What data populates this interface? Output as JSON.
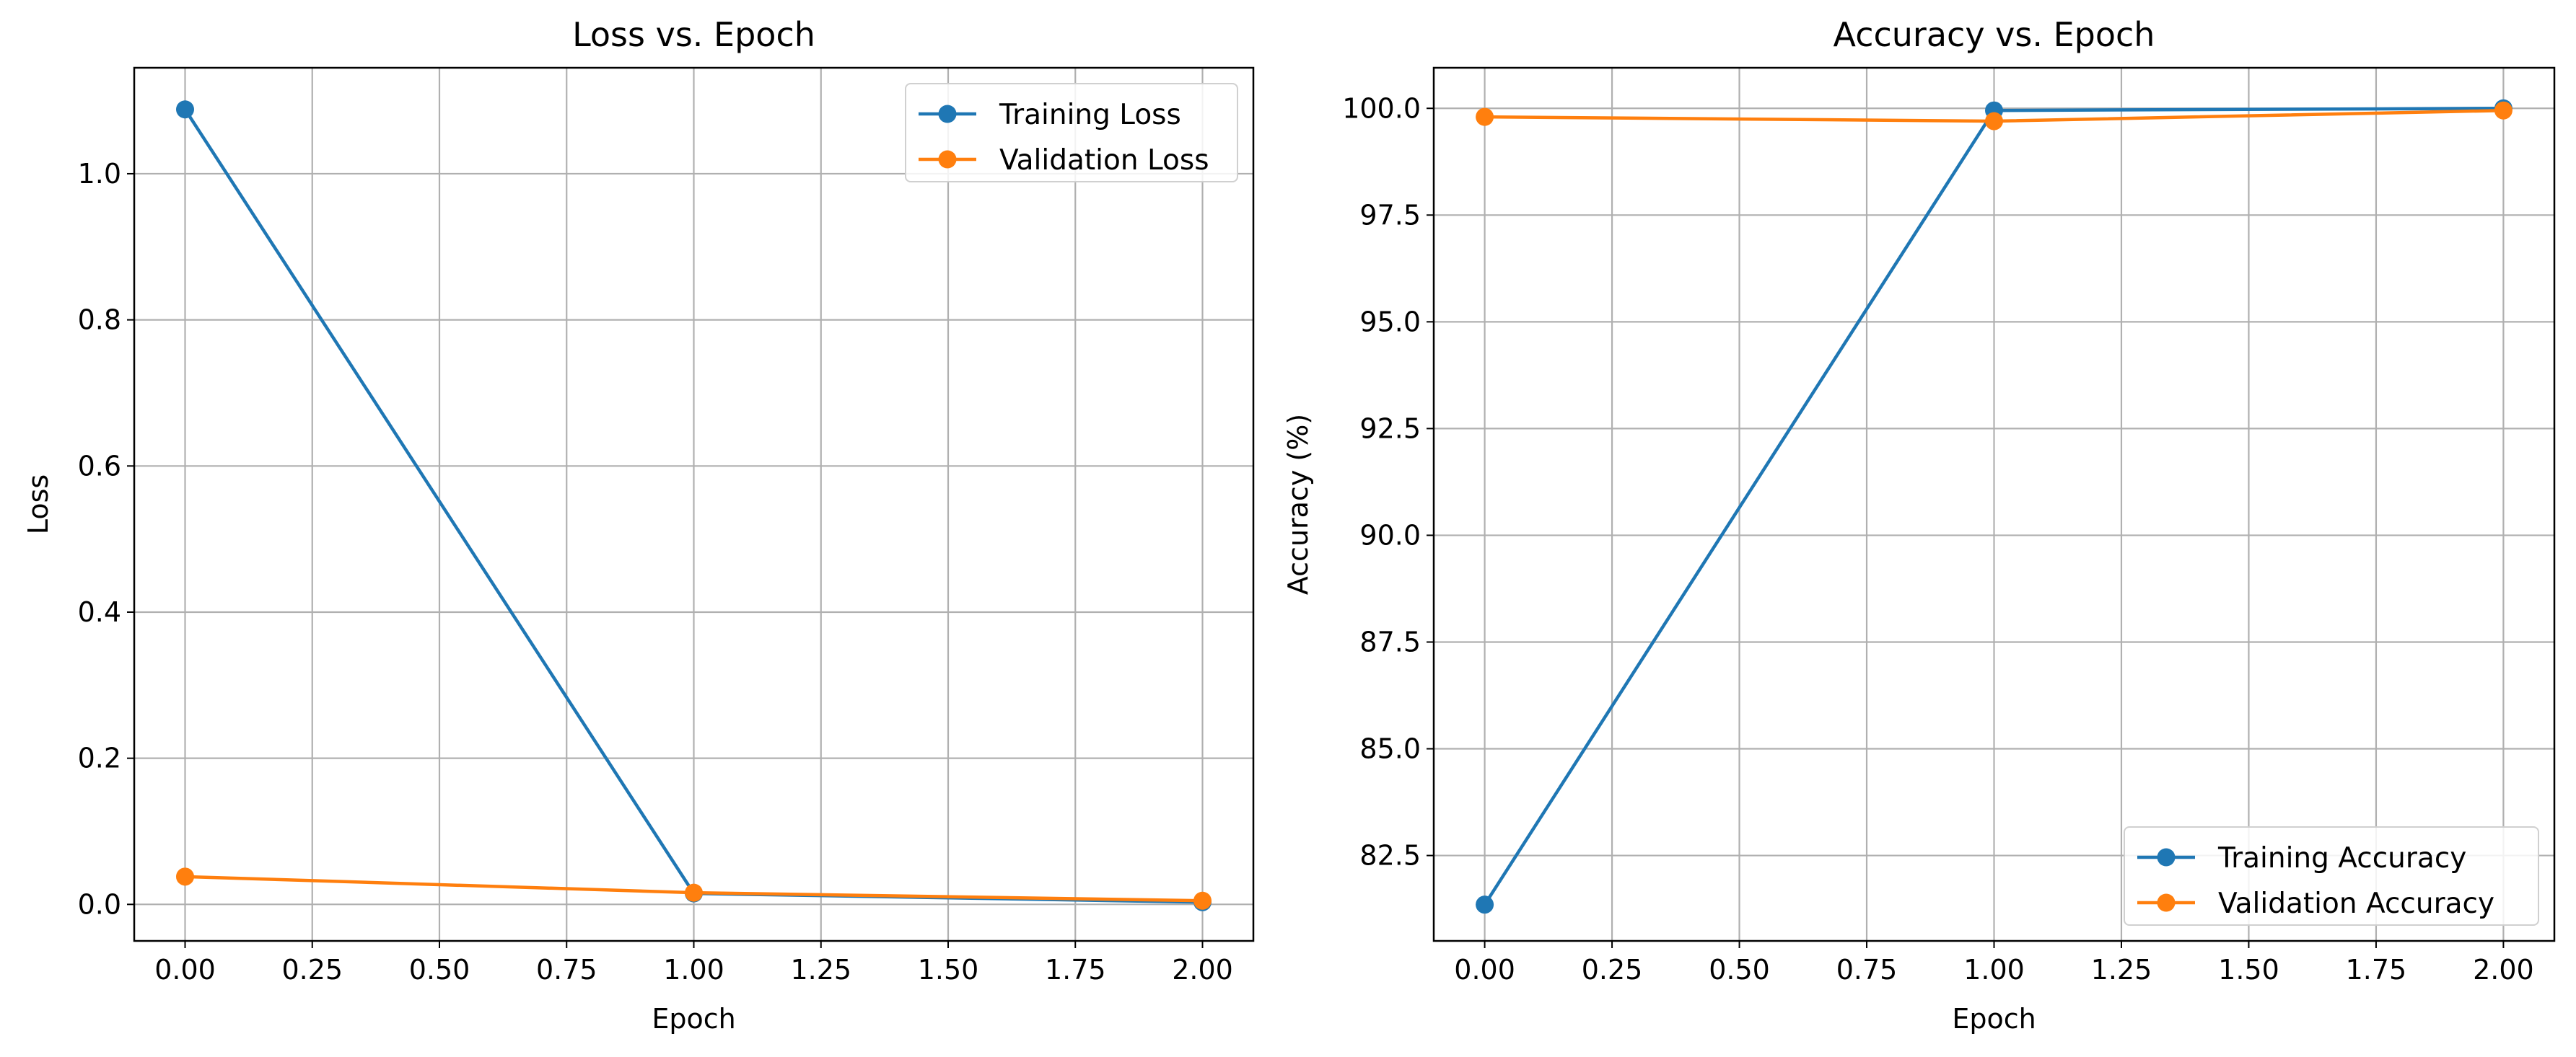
{
  "chart_data": [
    {
      "type": "line",
      "title": "Loss vs. Epoch",
      "xlabel": "Epoch",
      "ylabel": "Loss",
      "x": [
        0,
        1,
        2
      ],
      "xlim": [
        -0.1,
        2.1
      ],
      "ylim": [
        -0.05,
        1.145
      ],
      "xticks": [
        "0.00",
        "0.25",
        "0.50",
        "0.75",
        "1.00",
        "1.25",
        "1.50",
        "1.75",
        "2.00"
      ],
      "yticks": [
        "0.0",
        "0.2",
        "0.4",
        "0.6",
        "0.8",
        "1.0"
      ],
      "grid": true,
      "legend_position": "upper right",
      "series": [
        {
          "name": "Training Loss",
          "color": "#1f77b4",
          "marker": "circle",
          "values": [
            1.088,
            0.015,
            0.003
          ]
        },
        {
          "name": "Validation Loss",
          "color": "#ff7f0e",
          "marker": "circle",
          "values": [
            0.038,
            0.016,
            0.005
          ]
        }
      ]
    },
    {
      "type": "line",
      "title": "Accuracy vs. Epoch",
      "xlabel": "Epoch",
      "ylabel": "Accuracy (%)",
      "x": [
        0,
        1,
        2
      ],
      "xlim": [
        -0.1,
        2.1
      ],
      "ylim": [
        80.5,
        100.95
      ],
      "xticks": [
        "0.00",
        "0.25",
        "0.50",
        "0.75",
        "1.00",
        "1.25",
        "1.50",
        "1.75",
        "2.00"
      ],
      "yticks": [
        "82.5",
        "85.0",
        "87.5",
        "90.0",
        "92.5",
        "95.0",
        "97.5",
        "100.0"
      ],
      "grid": true,
      "legend_position": "lower right",
      "series": [
        {
          "name": "Training Accuracy",
          "color": "#1f77b4",
          "marker": "circle",
          "values": [
            81.35,
            99.95,
            100.0
          ]
        },
        {
          "name": "Validation Accuracy",
          "color": "#ff7f0e",
          "marker": "circle",
          "values": [
            99.8,
            99.7,
            99.95
          ]
        }
      ]
    }
  ]
}
